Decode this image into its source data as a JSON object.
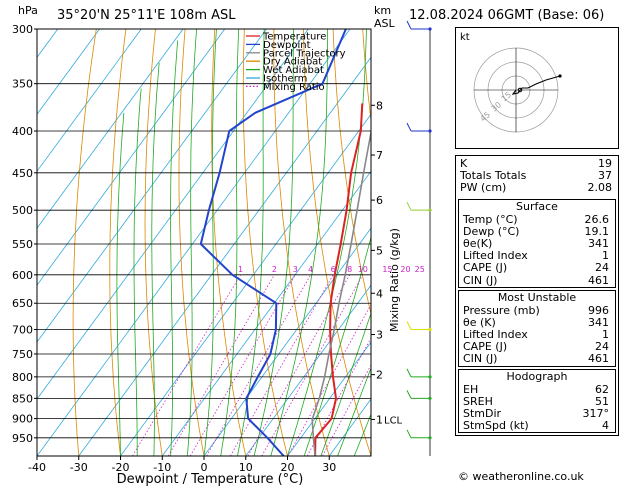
{
  "header": {
    "location": "35°20'N  25°11'E  108m  ASL",
    "datetime": "12.08.2024  06GMT  (Base: 06)",
    "hpa_unit": "hPa",
    "km_unit": "km",
    "asl_unit": "ASL"
  },
  "chart_data": {
    "type": "line",
    "xlabel": "Dewpoint / Temperature (°C)",
    "ylabel_right": "Mixing Ratio (g/kg)",
    "x_ticks": [
      -40,
      -30,
      -20,
      -10,
      0,
      10,
      20,
      30
    ],
    "xlim": [
      -40,
      40
    ],
    "pressure_levels": [
      300,
      350,
      400,
      450,
      500,
      550,
      600,
      650,
      700,
      750,
      800,
      850,
      900,
      950
    ],
    "ylim_hpa": [
      1000,
      300
    ],
    "km_ticks": [
      {
        "label": "8",
        "p": 372
      },
      {
        "label": "7",
        "p": 428
      },
      {
        "label": "6",
        "p": 486
      },
      {
        "label": "5",
        "p": 560
      },
      {
        "label": "4",
        "p": 632
      },
      {
        "label": "3",
        "p": 710
      },
      {
        "label": "2",
        "p": 795
      },
      {
        "label": "1",
        "p": 902
      }
    ],
    "lcl": {
      "label": "LCL",
      "p": 902
    },
    "mixing_ratio_labels": [
      "1",
      "2",
      "3",
      "4",
      "6",
      "8",
      "10",
      "15",
      "20",
      "25"
    ],
    "mixing_ratio_values": [
      1,
      2,
      3,
      4,
      6,
      8,
      10,
      15,
      20,
      25
    ],
    "series": [
      {
        "name": "Temperature",
        "color": "#dd2222",
        "points": [
          [
            1000,
            26.6
          ],
          [
            950,
            23.5
          ],
          [
            900,
            24
          ],
          [
            850,
            21.5
          ],
          [
            800,
            17
          ],
          [
            750,
            12.5
          ],
          [
            700,
            8
          ],
          [
            650,
            3.5
          ],
          [
            600,
            -0.5
          ],
          [
            550,
            -4.5
          ],
          [
            500,
            -9
          ],
          [
            450,
            -14.5
          ],
          [
            400,
            -19.5
          ],
          [
            370,
            -24
          ]
        ]
      },
      {
        "name": "Dewpoint",
        "color": "#2244cc",
        "points": [
          [
            1000,
            19.1
          ],
          [
            950,
            12
          ],
          [
            900,
            4
          ],
          [
            850,
            0
          ],
          [
            800,
            -1
          ],
          [
            750,
            -2
          ],
          [
            700,
            -5
          ],
          [
            650,
            -9.5
          ],
          [
            600,
            -25
          ],
          [
            550,
            -38
          ],
          [
            500,
            -42
          ],
          [
            450,
            -46
          ],
          [
            400,
            -51
          ],
          [
            380,
            -48
          ],
          [
            350,
            -37
          ],
          [
            300,
            -41
          ]
        ]
      },
      {
        "name": "Parcel Trajectory",
        "color": "#888888",
        "points": [
          [
            1000,
            26.6
          ],
          [
            950,
            23
          ],
          [
            902,
            19.5
          ],
          [
            850,
            17.5
          ],
          [
            800,
            15
          ],
          [
            750,
            12
          ],
          [
            700,
            9
          ],
          [
            650,
            5.5
          ],
          [
            600,
            2
          ],
          [
            550,
            -2
          ],
          [
            500,
            -6.5
          ],
          [
            450,
            -11.5
          ],
          [
            400,
            -17
          ],
          [
            350,
            -23.5
          ],
          [
            300,
            -31
          ]
        ]
      }
    ],
    "legend": [
      "Temperature",
      "Dewpoint",
      "Parcel Trajectory",
      "Dry Adiabat",
      "Wet Adiabat",
      "Isotherm",
      "Mixing Ratio"
    ],
    "legend_colors": [
      "#dd2222",
      "#2244cc",
      "#888888",
      "#dd8800",
      "#22aa22",
      "#33aadd",
      "#cc22cc"
    ],
    "winds": [
      {
        "p": 300,
        "color": "#2233cc"
      },
      {
        "p": 400,
        "color": "#2233cc"
      },
      {
        "p": 500,
        "color": "#99cc33"
      },
      {
        "p": 700,
        "color": "#dddd00"
      },
      {
        "p": 800,
        "color": "#22aa22"
      },
      {
        "p": 850,
        "color": "#22aa22"
      },
      {
        "p": 950,
        "color": "#22aa22"
      }
    ]
  },
  "hodograph": {
    "label": "kt",
    "ring_labels": [
      "15",
      "30",
      "45"
    ]
  },
  "indices": [
    {
      "label": "K",
      "value": "19"
    },
    {
      "label": "Totals Totals",
      "value": "37"
    },
    {
      "label": "PW (cm)",
      "value": "2.08"
    }
  ],
  "surface": {
    "title": "Surface",
    "rows": [
      {
        "label": "Temp (°C)",
        "value": "26.6"
      },
      {
        "label": "Dewp (°C)",
        "value": "19.1"
      },
      {
        "label": "θe(K)",
        "value": "341"
      },
      {
        "label": "Lifted Index",
        "value": "1"
      },
      {
        "label": "CAPE (J)",
        "value": "24"
      },
      {
        "label": "CIN (J)",
        "value": "461"
      }
    ]
  },
  "most_unstable": {
    "title": "Most Unstable",
    "rows": [
      {
        "label": "Pressure (mb)",
        "value": "996"
      },
      {
        "label": "θe (K)",
        "value": "341"
      },
      {
        "label": "Lifted Index",
        "value": "1"
      },
      {
        "label": "CAPE (J)",
        "value": "24"
      },
      {
        "label": "CIN (J)",
        "value": "461"
      }
    ]
  },
  "hodo_table": {
    "title": "Hodograph",
    "rows": [
      {
        "label": "EH",
        "value": "62"
      },
      {
        "label": "SREH",
        "value": "51"
      },
      {
        "label": "StmDir",
        "value": "317°"
      },
      {
        "label": "StmSpd (kt)",
        "value": "4"
      }
    ]
  },
  "footer": "© weatheronline.co.uk"
}
